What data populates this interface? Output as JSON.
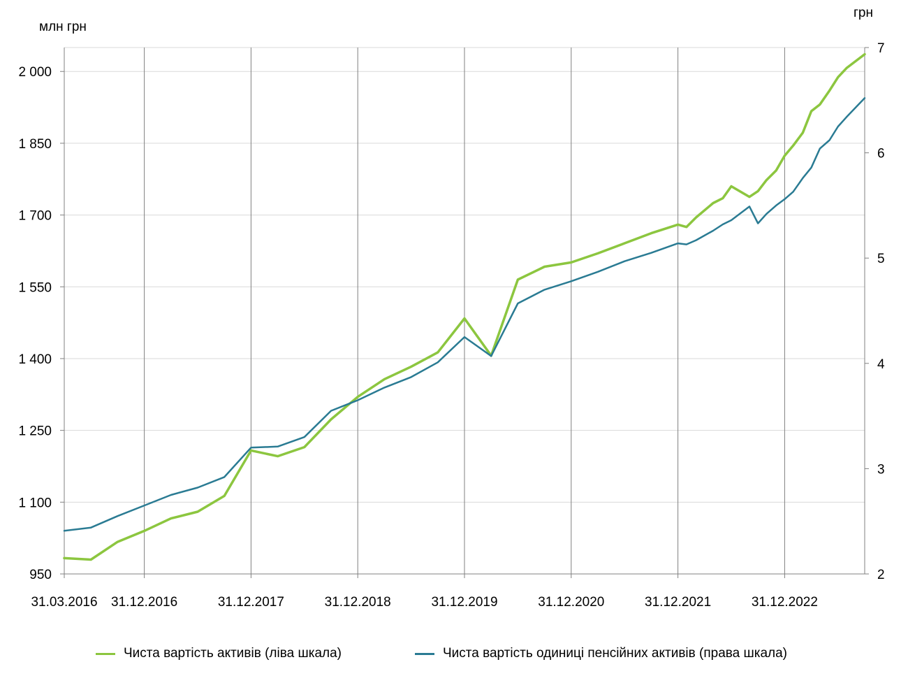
{
  "chart_data": {
    "type": "line",
    "left_axis": {
      "unit_label": "млн  грн",
      "ticks": [
        950,
        1100,
        1250,
        1400,
        1550,
        1700,
        1850,
        2000
      ],
      "tick_labels": [
        "950",
        "1 100",
        "1 250",
        "1 400",
        "1 550",
        "1 700",
        "1 850",
        "2 000"
      ],
      "range": [
        950,
        2050
      ]
    },
    "right_axis": {
      "unit_label": "грн",
      "ticks": [
        2,
        3,
        4,
        5,
        6,
        7
      ],
      "tick_labels": [
        "2",
        "3",
        "4",
        "5",
        "6",
        "7"
      ],
      "range": [
        2,
        7
      ]
    },
    "x_axis": {
      "range_years": [
        2016.25,
        2023.75
      ],
      "tick_labels": [
        "31.03.2016",
        "31.12.2016",
        "31.12.2017",
        "31.12.2018",
        "31.12.2019",
        "31.12.2020",
        "31.12.2021",
        "31.12.2022"
      ],
      "tick_years": [
        2016.25,
        2017.0,
        2018.0,
        2019.0,
        2020.0,
        2021.0,
        2022.0,
        2023.0
      ]
    },
    "grid": {
      "vertical": true,
      "horizontal": true
    },
    "legend_position": "bottom",
    "series": [
      {
        "name": "Чиста вартість активів (ліва шкала)",
        "axis": "left",
        "color": "#8cc63f",
        "x": [
          2016.25,
          2016.5,
          2016.75,
          2017.0,
          2017.25,
          2017.5,
          2017.75,
          2018.0,
          2018.25,
          2018.5,
          2018.75,
          2019.0,
          2019.25,
          2019.5,
          2019.75,
          2020.0,
          2020.25,
          2020.5,
          2020.75,
          2021.0,
          2021.25,
          2021.5,
          2021.75,
          2022.0,
          2022.08,
          2022.17,
          2022.33,
          2022.42,
          2022.5,
          2022.67,
          2022.75,
          2022.83,
          2022.92,
          2023.0,
          2023.08,
          2023.17,
          2023.25,
          2023.33,
          2023.42,
          2023.5,
          2023.58,
          2023.75
        ],
        "y": [
          983,
          980,
          1017,
          1040,
          1066,
          1080,
          1113,
          1208,
          1196,
          1215,
          1273,
          1320,
          1357,
          1383,
          1413,
          1484,
          1406,
          1565,
          1592,
          1601,
          1620,
          1641,
          1662,
          1680,
          1675,
          1695,
          1725,
          1735,
          1760,
          1738,
          1750,
          1773,
          1793,
          1824,
          1845,
          1872,
          1917,
          1931,
          1960,
          1988,
          2007,
          2036
        ]
      },
      {
        "name": "Чиста вартість одиниці пенсійних активів (права шкала)",
        "axis": "right",
        "color": "#2a7b93",
        "x": [
          2016.25,
          2016.5,
          2016.75,
          2017.0,
          2017.25,
          2017.5,
          2017.75,
          2018.0,
          2018.25,
          2018.5,
          2018.75,
          2019.0,
          2019.25,
          2019.5,
          2019.75,
          2020.0,
          2020.25,
          2020.5,
          2020.75,
          2021.0,
          2021.25,
          2021.5,
          2021.75,
          2022.0,
          2022.08,
          2022.17,
          2022.33,
          2022.42,
          2022.5,
          2022.67,
          2022.75,
          2022.83,
          2022.92,
          2023.0,
          2023.08,
          2023.17,
          2023.25,
          2023.33,
          2023.42,
          2023.5,
          2023.58,
          2023.75
        ],
        "y": [
          2.41,
          2.44,
          2.55,
          2.65,
          2.75,
          2.82,
          2.92,
          3.2,
          3.21,
          3.3,
          3.55,
          3.65,
          3.77,
          3.87,
          4.01,
          4.25,
          4.07,
          4.57,
          4.7,
          4.78,
          4.87,
          4.97,
          5.05,
          5.14,
          5.13,
          5.17,
          5.26,
          5.32,
          5.36,
          5.49,
          5.33,
          5.42,
          5.5,
          5.56,
          5.63,
          5.76,
          5.86,
          6.04,
          6.12,
          6.25,
          6.34,
          6.52
        ]
      }
    ]
  }
}
